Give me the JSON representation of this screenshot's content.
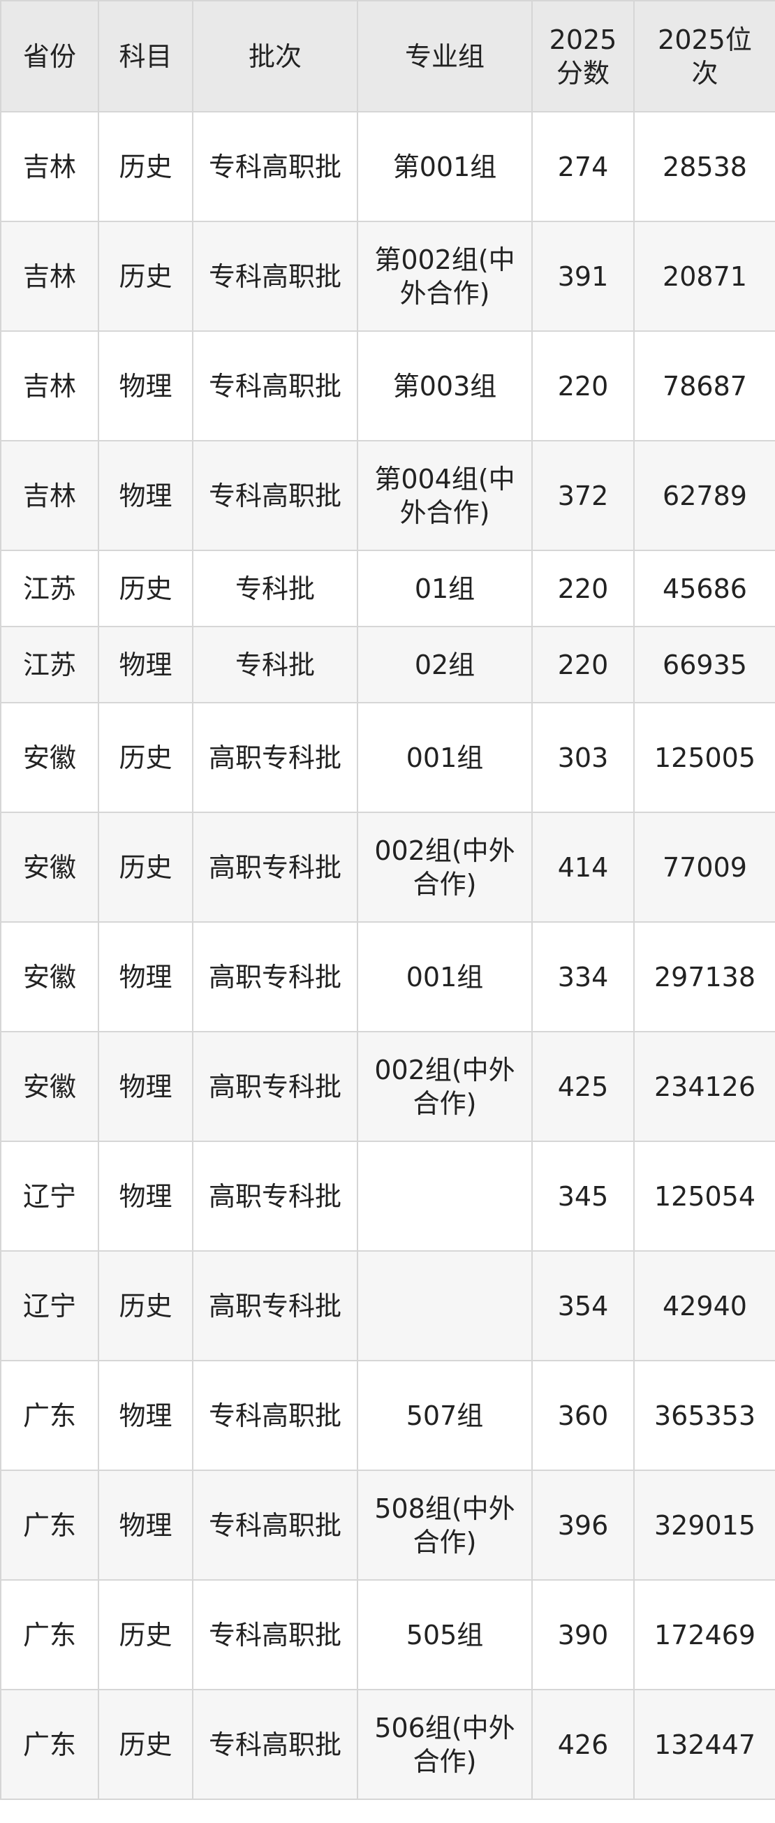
{
  "table": {
    "header": [
      "省份",
      "科目",
      "批次",
      "专业组",
      "2025分数",
      "2025位次"
    ],
    "rows": [
      [
        "吉林",
        "历史",
        "专科高职批",
        "第001组",
        274,
        28538
      ],
      [
        "吉林",
        "历史",
        "专科高职批",
        "第002组(中外合作)",
        391,
        20871
      ],
      [
        "吉林",
        "物理",
        "专科高职批",
        "第003组",
        220,
        78687
      ],
      [
        "吉林",
        "物理",
        "专科高职批",
        "第004组(中外合作)",
        372,
        62789
      ],
      [
        "江苏",
        "历史",
        "专科批",
        "01组",
        220,
        45686
      ],
      [
        "江苏",
        "物理",
        "专科批",
        "02组",
        220,
        66935
      ],
      [
        "安徽",
        "历史",
        "高职专科批",
        "001组",
        303,
        125005
      ],
      [
        "安徽",
        "历史",
        "高职专科批",
        "002组(中外合作)",
        414,
        77009
      ],
      [
        "安徽",
        "物理",
        "高职专科批",
        "001组",
        334,
        297138
      ],
      [
        "安徽",
        "物理",
        "高职专科批",
        "002组(中外合作)",
        425,
        234126
      ],
      [
        "辽宁",
        "物理",
        "高职专科批",
        null,
        345,
        125054
      ],
      [
        "辽宁",
        "历史",
        "高职专科批",
        null,
        354,
        42940
      ],
      [
        "广东",
        "物理",
        "专科高职批",
        "507组",
        360,
        365353
      ],
      [
        "广东",
        "物理",
        "专科高职批",
        "508组(中外合作)",
        396,
        329015
      ],
      [
        "广东",
        "历史",
        "专科高职批",
        "505组",
        390,
        172469
      ],
      [
        "广东",
        "历史",
        "专科高职批",
        "506组(中外合作)",
        426,
        132447
      ]
    ]
  }
}
